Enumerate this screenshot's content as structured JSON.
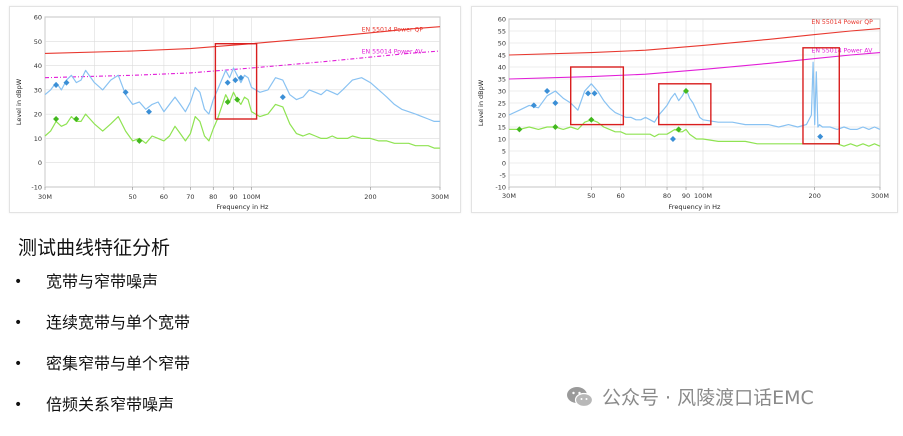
{
  "heading": "测试曲线特征分析",
  "bullets": [
    {
      "bullet": "•",
      "text": "宽带与窄带噪声"
    },
    {
      "bullet": "•",
      "text": "连续宽带与单个宽带"
    },
    {
      "bullet": "•",
      "text": "密集窄带与单个窄带"
    },
    {
      "bullet": "•",
      "text": "倍频关系窄带噪声"
    }
  ],
  "watermark": "公众号 · 风陵渡口话EMC",
  "colors": {
    "gp_limit": "#e8382f",
    "av_limit": "#e21fd8",
    "pk_trace": "#89c2f2",
    "av_trace": "#8fe352",
    "marker_pk": "#3b8fd6",
    "marker_av": "#42b81e",
    "highlight_box": "#d91e1e"
  },
  "chart_data": [
    {
      "type": "line",
      "xlabel": "Frequency in Hz",
      "ylabel": "Level in dBpW",
      "x_scale": "log",
      "xlim": [
        30,
        300
      ],
      "ylim": [
        -10,
        60
      ],
      "grid": true,
      "xticks": [
        {
          "v": 30,
          "label": "30M"
        },
        {
          "v": 50,
          "label": "50"
        },
        {
          "v": 60,
          "label": "60"
        },
        {
          "v": 70,
          "label": "70"
        },
        {
          "v": 80,
          "label": "80"
        },
        {
          "v": 90,
          "label": "90"
        },
        {
          "v": 100,
          "label": "100M"
        },
        {
          "v": 200,
          "label": "200"
        },
        {
          "v": 300,
          "label": "300M"
        }
      ],
      "yticks": [
        -10,
        0,
        10,
        20,
        30,
        40,
        50,
        60
      ],
      "series": [
        {
          "name": "EN 55014 Power QP",
          "role": "gp_limit",
          "style": "solid",
          "x": [
            30,
            50,
            70,
            100,
            150,
            200,
            250,
            300
          ],
          "y": [
            45,
            46,
            47,
            49,
            51.5,
            53.5,
            55,
            56
          ]
        },
        {
          "name": "EN 55014 Power AV",
          "role": "av_limit",
          "style": "dashdot",
          "x": [
            30,
            50,
            70,
            100,
            150,
            200,
            250,
            300
          ],
          "y": [
            35,
            36,
            37,
            39,
            41.5,
            43.5,
            45,
            46
          ]
        },
        {
          "role": "pk_trace",
          "x": [
            30,
            31,
            32,
            33,
            34,
            35,
            36,
            37,
            38,
            40,
            42,
            44,
            46,
            48,
            50,
            52,
            54,
            56,
            58,
            60,
            62,
            64,
            66,
            68,
            70,
            72,
            74,
            76,
            78,
            80,
            82,
            84,
            86,
            88,
            90,
            92,
            94,
            96,
            98,
            100,
            105,
            110,
            115,
            120,
            125,
            130,
            135,
            140,
            145,
            150,
            155,
            160,
            165,
            170,
            175,
            180,
            190,
            200,
            210,
            220,
            230,
            240,
            250,
            260,
            270,
            280,
            290,
            300
          ],
          "y": [
            28,
            30,
            33,
            30,
            34,
            36,
            33,
            34,
            38,
            33,
            30,
            34,
            36,
            28,
            24,
            25,
            22,
            24,
            25,
            21,
            24,
            27,
            24,
            21,
            25,
            31,
            29,
            22,
            20,
            26,
            30,
            34,
            38,
            35,
            39,
            36,
            33,
            36,
            35,
            31,
            29,
            30,
            35,
            34,
            28,
            26,
            27,
            30,
            29,
            28,
            30,
            29,
            28,
            30,
            32,
            34,
            35,
            33,
            30,
            27,
            24,
            22,
            21,
            20,
            19,
            18,
            17,
            17
          ]
        },
        {
          "role": "av_trace",
          "x": [
            30,
            31,
            32,
            33,
            34,
            35,
            36,
            37,
            38,
            40,
            42,
            44,
            46,
            48,
            50,
            52,
            54,
            56,
            58,
            60,
            62,
            64,
            66,
            68,
            70,
            72,
            74,
            76,
            78,
            80,
            82,
            84,
            86,
            88,
            90,
            92,
            94,
            96,
            98,
            100,
            105,
            110,
            115,
            120,
            125,
            130,
            135,
            140,
            145,
            150,
            155,
            160,
            165,
            170,
            175,
            180,
            190,
            200,
            210,
            220,
            230,
            240,
            250,
            260,
            270,
            280,
            290,
            300
          ],
          "y": [
            11,
            13,
            17,
            15,
            16,
            19,
            17,
            17,
            20,
            16,
            13,
            16,
            19,
            13,
            9,
            10,
            8,
            11,
            10,
            9,
            11,
            15,
            12,
            9,
            12,
            19,
            17,
            11,
            9,
            14,
            18,
            23,
            28,
            25,
            29,
            26,
            24,
            27,
            26,
            21,
            19,
            20,
            24,
            23,
            16,
            12,
            11,
            12,
            11,
            10,
            10,
            11,
            10,
            10,
            10,
            11,
            10,
            10,
            9,
            9,
            8,
            8,
            8,
            7,
            7,
            7,
            6,
            6
          ]
        },
        {
          "role": "marker_pk",
          "style": "markers",
          "x": [
            32,
            34,
            48,
            55,
            87,
            91,
            94,
            120
          ],
          "y": [
            32,
            33,
            29,
            21,
            33,
            34,
            35,
            27
          ]
        },
        {
          "role": "marker_av",
          "style": "markers",
          "x": [
            32,
            36,
            52,
            87,
            92
          ],
          "y": [
            18,
            18,
            9,
            25,
            26
          ]
        }
      ],
      "annotations": [
        {
          "text": "EN 55014 Power QP",
          "at": [
            190,
            54
          ]
        },
        {
          "text": "EN 55014 Power AV",
          "at": [
            190,
            45
          ]
        }
      ],
      "highlights": [
        {
          "x": [
            81,
            103
          ],
          "y": [
            18,
            49
          ]
        }
      ]
    },
    {
      "type": "line",
      "xlabel": "Frequency in Hz",
      "ylabel": "Level in dBpW",
      "x_scale": "log",
      "xlim": [
        30,
        300
      ],
      "ylim": [
        -10,
        60
      ],
      "grid": true,
      "xticks": [
        {
          "v": 30,
          "label": "30M"
        },
        {
          "v": 50,
          "label": "50"
        },
        {
          "v": 60,
          "label": "60"
        },
        {
          "v": 80,
          "label": "80"
        },
        {
          "v": 90,
          "label": "90"
        },
        {
          "v": 100,
          "label": "100M"
        },
        {
          "v": 200,
          "label": "200"
        },
        {
          "v": 300,
          "label": "300M"
        }
      ],
      "yticks": [
        -10,
        -5,
        0,
        5,
        10,
        15,
        20,
        25,
        30,
        35,
        40,
        45,
        50,
        55,
        60
      ],
      "series": [
        {
          "name": "EN 55014 Power QP",
          "role": "gp_limit",
          "style": "solid",
          "x": [
            30,
            50,
            70,
            100,
            150,
            200,
            250,
            300
          ],
          "y": [
            45,
            46,
            47,
            49,
            51.5,
            53.5,
            55,
            56
          ]
        },
        {
          "name": "EN 55014 Power AV",
          "role": "av_limit",
          "style": "solid",
          "x": [
            30,
            50,
            70,
            100,
            150,
            200,
            250,
            300
          ],
          "y": [
            35,
            36,
            37,
            39,
            41.5,
            43.5,
            45,
            46
          ]
        },
        {
          "role": "pk_trace",
          "x": [
            30,
            32,
            34,
            36,
            38,
            40,
            42,
            44,
            46,
            48,
            50,
            52,
            54,
            56,
            58,
            60,
            62,
            64,
            66,
            68,
            70,
            72,
            74,
            76,
            78,
            80,
            82,
            84,
            86,
            88,
            90,
            92,
            94,
            96,
            98,
            100,
            110,
            120,
            130,
            140,
            150,
            160,
            170,
            180,
            190,
            196,
            198,
            200,
            202,
            204,
            206,
            210,
            220,
            230,
            240,
            250,
            260,
            270,
            280,
            290,
            300
          ],
          "y": [
            20,
            22,
            24,
            23,
            28,
            30,
            27,
            25,
            22,
            30,
            33,
            30,
            26,
            23,
            21,
            20,
            19,
            19,
            18,
            18,
            19,
            18,
            17,
            20,
            22,
            24,
            27,
            29,
            26,
            28,
            31,
            27,
            25,
            22,
            19,
            18,
            17,
            17,
            16,
            16,
            16,
            15,
            16,
            15,
            16,
            20,
            42,
            16,
            38,
            15,
            16,
            15,
            15,
            14,
            15,
            14,
            14,
            15,
            14,
            15,
            14
          ]
        },
        {
          "role": "av_trace",
          "x": [
            30,
            32,
            34,
            36,
            38,
            40,
            42,
            44,
            46,
            48,
            50,
            52,
            54,
            56,
            58,
            60,
            62,
            64,
            66,
            68,
            70,
            72,
            74,
            76,
            78,
            80,
            82,
            84,
            86,
            88,
            90,
            92,
            94,
            96,
            98,
            100,
            110,
            120,
            130,
            140,
            150,
            160,
            170,
            180,
            190,
            200,
            210,
            220,
            230,
            240,
            250,
            260,
            270,
            280,
            290,
            300
          ],
          "y": [
            14,
            14,
            15,
            14,
            15,
            15,
            14,
            15,
            14,
            17,
            18,
            17,
            15,
            14,
            13,
            13,
            12,
            12,
            12,
            12,
            12,
            12,
            11,
            12,
            12,
            12,
            13,
            14,
            13,
            13,
            14,
            12,
            11,
            10,
            10,
            10,
            9,
            9,
            9,
            8,
            8,
            8,
            8,
            8,
            8,
            8,
            8,
            8,
            8,
            7,
            8,
            7,
            8,
            7,
            8,
            7
          ]
        },
        {
          "role": "marker_pk",
          "style": "markers",
          "x": [
            35,
            38,
            40,
            49,
            51,
            83,
            207
          ],
          "y": [
            24,
            30,
            25,
            29,
            29,
            10,
            11
          ]
        },
        {
          "role": "marker_av",
          "style": "markers",
          "x": [
            32,
            40,
            50,
            86,
            90
          ],
          "y": [
            14,
            15,
            18,
            14,
            30
          ]
        }
      ],
      "annotations": [
        {
          "text": "EN 55014 Power QP",
          "at": [
            196,
            58
          ]
        },
        {
          "text": "EN 55014 Power AV",
          "at": [
            196,
            46
          ]
        }
      ],
      "highlights": [
        {
          "x": [
            44,
            61
          ],
          "y": [
            16,
            40
          ]
        },
        {
          "x": [
            76,
            105
          ],
          "y": [
            16,
            33
          ]
        },
        {
          "x": [
            186,
            233
          ],
          "y": [
            8,
            48
          ]
        }
      ]
    }
  ]
}
